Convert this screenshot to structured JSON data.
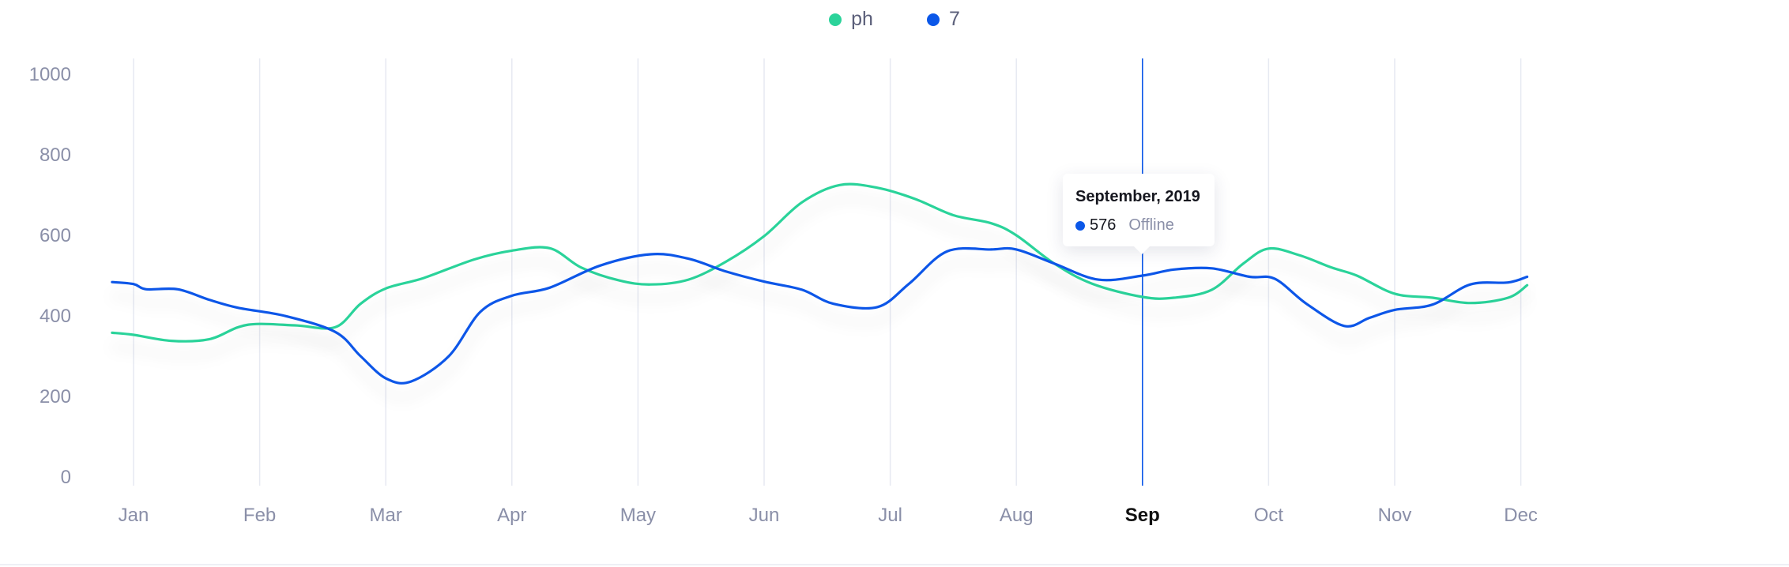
{
  "legend": [
    {
      "name": "ph",
      "color": "#2bd39a"
    },
    {
      "name": "7",
      "color": "#0b57e8"
    }
  ],
  "tooltip": {
    "title": "September, 2019",
    "value": "576",
    "label": "Offline",
    "color": "#0b57e8"
  },
  "chart_data": {
    "type": "line",
    "categories": [
      "Jan",
      "Feb",
      "Mar",
      "Apr",
      "May",
      "Jun",
      "Jul",
      "Aug",
      "Sep",
      "Oct",
      "Nov",
      "Dec"
    ],
    "active_category": "Sep",
    "ylim": [
      0,
      1000
    ],
    "yticks": [
      0,
      200,
      400,
      600,
      800,
      1000
    ],
    "grid": "vertical",
    "legend_position": "top-center",
    "series": [
      {
        "name": "ph",
        "color": "#2bd39a",
        "points": [
          [
            -0.17,
            358
          ],
          [
            0.0,
            353
          ],
          [
            0.3,
            338
          ],
          [
            0.6,
            342
          ],
          [
            0.83,
            372
          ],
          [
            1.0,
            380
          ],
          [
            1.3,
            376
          ],
          [
            1.6,
            372
          ],
          [
            1.8,
            430
          ],
          [
            2.0,
            468
          ],
          [
            2.3,
            494
          ],
          [
            2.7,
            540
          ],
          [
            3.0,
            562
          ],
          [
            3.3,
            568
          ],
          [
            3.55,
            520
          ],
          [
            3.85,
            488
          ],
          [
            4.1,
            478
          ],
          [
            4.4,
            490
          ],
          [
            4.7,
            535
          ],
          [
            5.0,
            598
          ],
          [
            5.3,
            682
          ],
          [
            5.6,
            725
          ],
          [
            5.9,
            718
          ],
          [
            6.2,
            690
          ],
          [
            6.5,
            650
          ],
          [
            6.8,
            630
          ],
          [
            7.0,
            600
          ],
          [
            7.3,
            530
          ],
          [
            7.6,
            480
          ],
          [
            8.0,
            447
          ],
          [
            8.25,
            445
          ],
          [
            8.55,
            465
          ],
          [
            8.8,
            530
          ],
          [
            9.0,
            567
          ],
          [
            9.25,
            550
          ],
          [
            9.5,
            520
          ],
          [
            9.7,
            500
          ],
          [
            10.0,
            455
          ],
          [
            10.3,
            445
          ],
          [
            10.6,
            432
          ],
          [
            10.9,
            445
          ],
          [
            11.05,
            476
          ]
        ]
      },
      {
        "name": "7",
        "color": "#0b57e8",
        "points": [
          [
            -0.17,
            484
          ],
          [
            0.0,
            479
          ],
          [
            0.1,
            466
          ],
          [
            0.35,
            466
          ],
          [
            0.6,
            440
          ],
          [
            0.83,
            420
          ],
          [
            1.2,
            400
          ],
          [
            1.6,
            360
          ],
          [
            1.8,
            300
          ],
          [
            2.0,
            245
          ],
          [
            2.2,
            237
          ],
          [
            2.5,
            300
          ],
          [
            2.75,
            410
          ],
          [
            3.0,
            450
          ],
          [
            3.3,
            470
          ],
          [
            3.7,
            525
          ],
          [
            4.1,
            553
          ],
          [
            4.4,
            542
          ],
          [
            4.7,
            510
          ],
          [
            5.0,
            485
          ],
          [
            5.3,
            465
          ],
          [
            5.55,
            430
          ],
          [
            5.9,
            422
          ],
          [
            6.15,
            480
          ],
          [
            6.45,
            560
          ],
          [
            6.8,
            565
          ],
          [
            7.0,
            565
          ],
          [
            7.3,
            530
          ],
          [
            7.65,
            490
          ],
          [
            8.0,
            500
          ],
          [
            8.25,
            515
          ],
          [
            8.55,
            518
          ],
          [
            8.85,
            497
          ],
          [
            9.05,
            492
          ],
          [
            9.3,
            430
          ],
          [
            9.6,
            375
          ],
          [
            9.8,
            395
          ],
          [
            10.0,
            415
          ],
          [
            10.3,
            428
          ],
          [
            10.6,
            478
          ],
          [
            10.9,
            483
          ],
          [
            11.05,
            497
          ]
        ]
      }
    ]
  }
}
